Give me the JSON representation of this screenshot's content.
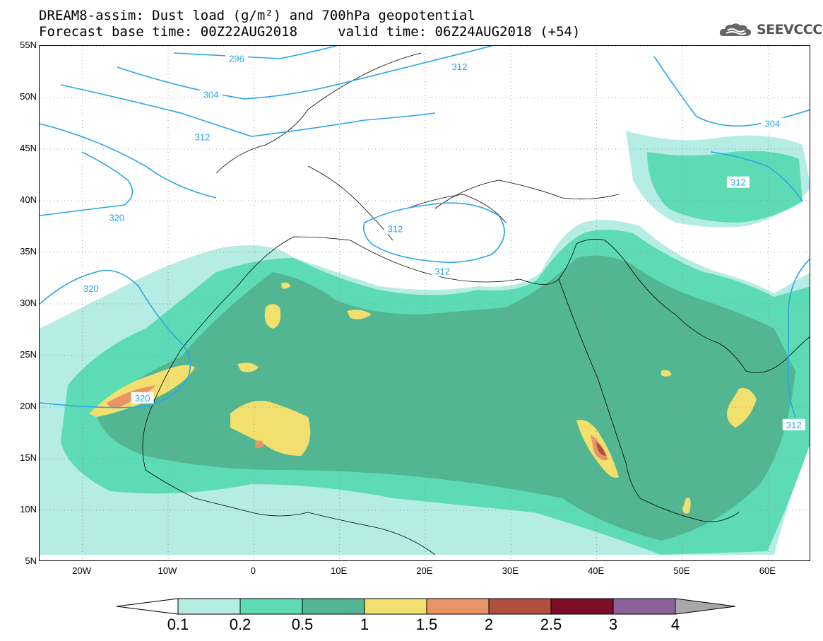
{
  "title": {
    "line1": "DREAM8-assim: Dust load (g/m²) and 700hPa geopotential",
    "line2": "Forecast base time: 00Z22AUG2018     valid time: 06Z24AUG2018 (+54)"
  },
  "logo": {
    "text": "SEEVCCC",
    "icon": "cloud-icon"
  },
  "map": {
    "lon_range": [
      -25,
      65
    ],
    "lat_range": [
      5,
      55
    ],
    "lat_ticks": [
      "55N",
      "50N",
      "45N",
      "40N",
      "35N",
      "30N",
      "25N",
      "20N",
      "15N",
      "10N",
      "5N"
    ],
    "lat_values": [
      55,
      50,
      45,
      40,
      35,
      30,
      25,
      20,
      15,
      10,
      5
    ],
    "lon_ticks": [
      "20W",
      "10W",
      "0",
      "10E",
      "20E",
      "30E",
      "40E",
      "50E",
      "60E"
    ],
    "lon_values": [
      -20,
      -10,
      0,
      10,
      20,
      30,
      40,
      50,
      60
    ],
    "gridlines": "dotted",
    "contour_labels": [
      {
        "text": "296",
        "lon": -2,
        "lat": 53.8
      },
      {
        "text": "312",
        "lon": 24,
        "lat": 53
      },
      {
        "text": "304",
        "lon": -5,
        "lat": 50.3
      },
      {
        "text": "312",
        "lon": -6,
        "lat": 46.2
      },
      {
        "text": "304",
        "lon": 60.5,
        "lat": 47.5
      },
      {
        "text": "312",
        "lon": 56.5,
        "lat": 41.8
      },
      {
        "text": "320",
        "lon": -16,
        "lat": 38.4
      },
      {
        "text": "312",
        "lon": 16.5,
        "lat": 37.3
      },
      {
        "text": "312",
        "lon": 22,
        "lat": 33.2
      },
      {
        "text": "320",
        "lon": -19,
        "lat": 31.5
      },
      {
        "text": "320",
        "lon": -13,
        "lat": 20.9
      },
      {
        "text": "312",
        "lon": 63,
        "lat": 18.3
      }
    ]
  },
  "colorbar": {
    "levels": [
      "0.1",
      "0.2",
      "0.5",
      "1",
      "1.5",
      "2",
      "2.5",
      "3",
      "4"
    ],
    "colors": [
      "#ffffff",
      "#b5ece3",
      "#5ddbb5",
      "#52b692",
      "#f2e06e",
      "#e89466",
      "#b0503e",
      "#7e0e27",
      "#8a6299",
      "#a8a8a8"
    ]
  }
}
